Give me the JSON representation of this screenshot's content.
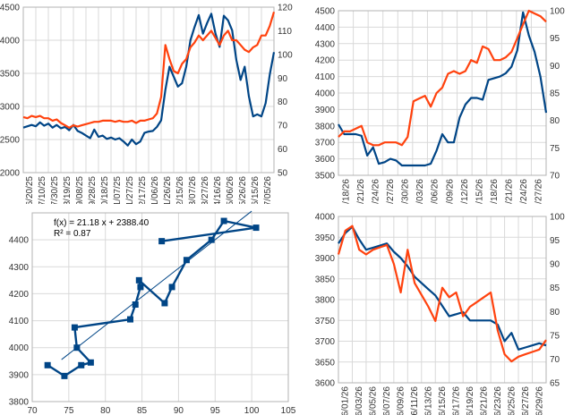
{
  "colors": {
    "navy": "#004586",
    "orange": "#ff420e",
    "grid": "#d9d9d9",
    "text": "#333333"
  },
  "chart_data": [
    {
      "type": "line",
      "x_ticks": [
        "06/20/25",
        "07/10/25",
        "07/30/25",
        "08/19/25",
        "09/08/25",
        "09/28/25",
        "10/18/25",
        "11/07/25",
        "11/27/25",
        "12/17/25",
        "01/06/26",
        "01/26/26",
        "02/15/26",
        "03/07/26",
        "03/27/26",
        "04/16/26",
        "05/06/26",
        "05/26/26",
        "06/15/26",
        "07/05/26"
      ],
      "y_left": {
        "ticks": [
          "2000",
          "2500",
          "3000",
          "3500",
          "4000",
          "4500"
        ],
        "range": [
          2000,
          4500
        ]
      },
      "y_right": {
        "ticks": [
          "50",
          "60",
          "70",
          "80",
          "90",
          "100",
          "110",
          "120"
        ],
        "range": [
          50,
          120
        ]
      },
      "grid": true,
      "series": [
        {
          "axis": "left",
          "color": "#004586",
          "values": [
            2680,
            2700,
            2720,
            2700,
            2760,
            2710,
            2740,
            2680,
            2720,
            2670,
            2690,
            2640,
            2720,
            2630,
            2600,
            2560,
            2520,
            2650,
            2540,
            2560,
            2510,
            2530,
            2500,
            2520,
            2470,
            2410,
            2500,
            2430,
            2470,
            2600,
            2620,
            2630,
            2690,
            2790,
            3250,
            3600,
            3450,
            3300,
            3350,
            3600,
            4000,
            4200,
            4380,
            4100,
            4260,
            4400,
            4100,
            3900,
            4370,
            4300,
            4150,
            3700,
            3400,
            3600,
            3150,
            2850,
            2880,
            2850,
            3050,
            3480,
            3820
          ]
        },
        {
          "axis": "right",
          "color": "#ff420e",
          "values": [
            73.5,
            73,
            74,
            73.5,
            74,
            73,
            73,
            72,
            72.5,
            71,
            70,
            69,
            70,
            69.5,
            70,
            70.5,
            71,
            71.5,
            71.5,
            72,
            72,
            72,
            71.5,
            72,
            71.5,
            71.5,
            72,
            71,
            72,
            72,
            72.5,
            73,
            75,
            82,
            104,
            98,
            93,
            92,
            96,
            98,
            103,
            105,
            108,
            106,
            108,
            110,
            107,
            104,
            108,
            110,
            106,
            106,
            104,
            102,
            101,
            103,
            104,
            108,
            108,
            112,
            118
          ]
        }
      ]
    },
    {
      "type": "line",
      "x_ticks": [
        "06/18/26",
        "06/21/26",
        "06/24/26",
        "06/27/26",
        "06/30/26",
        "07/03/26",
        "07/06/26",
        "07/09/26",
        "07/12/26",
        "07/15/26",
        "07/18/26",
        "07/21/26",
        "07/24/26",
        "07/27/26"
      ],
      "y_left": {
        "ticks": [
          "3500",
          "3600",
          "3700",
          "3800",
          "3900",
          "4000",
          "4100",
          "4200",
          "4300",
          "4400",
          "4500"
        ],
        "range": [
          3500,
          4500
        ]
      },
      "y_right": {
        "ticks": [
          "70",
          "75",
          "80",
          "85",
          "90",
          "95",
          "100"
        ],
        "range": [
          70,
          100
        ]
      },
      "grid": true,
      "series": [
        {
          "axis": "left",
          "color": "#004586",
          "values": [
            3810,
            3750,
            3750,
            3750,
            3740,
            3620,
            3670,
            3570,
            3580,
            3600,
            3590,
            3560,
            3560,
            3560,
            3560,
            3560,
            3570,
            3650,
            3750,
            3700,
            3700,
            3850,
            3930,
            3970,
            3970,
            3960,
            4080,
            4090,
            4100,
            4120,
            4160,
            4260,
            4490,
            4350,
            4250,
            4100,
            3880
          ]
        },
        {
          "axis": "right",
          "color": "#ff420e",
          "values": [
            77,
            78,
            78,
            78.5,
            79,
            76,
            75.5,
            75.5,
            76,
            76,
            76,
            75.5,
            77,
            83.5,
            84,
            84.5,
            82.5,
            85,
            86,
            88.5,
            89,
            88.5,
            89,
            91,
            90.5,
            93.5,
            93,
            91,
            91,
            91.5,
            92.5,
            95,
            97.5,
            100,
            99.5,
            99,
            98
          ]
        }
      ]
    },
    {
      "type": "scatter",
      "x_ticks": [
        "70",
        "75",
        "80",
        "85",
        "90",
        "95",
        "100",
        "105"
      ],
      "x_range": [
        70,
        105
      ],
      "y_ticks": [
        "3800",
        "3900",
        "4000",
        "4100",
        "4200",
        "4300",
        "4400"
      ],
      "y_range": [
        3800,
        4500
      ],
      "grid": true,
      "annotation": {
        "equation": "f(x) = 21.18 x + 2388.40",
        "r2": "R² = 0.87"
      },
      "trendline": {
        "slope": 21.18,
        "intercept": 2388.4,
        "color": "#004586"
      },
      "points": [
        {
          "x": 72.1,
          "y": 3935
        },
        {
          "x": 74.4,
          "y": 3895
        },
        {
          "x": 76.7,
          "y": 3935
        },
        {
          "x": 78.0,
          "y": 3945
        },
        {
          "x": 76.1,
          "y": 4000
        },
        {
          "x": 75.8,
          "y": 4075
        },
        {
          "x": 83.4,
          "y": 4105
        },
        {
          "x": 84.1,
          "y": 4160
        },
        {
          "x": 84.8,
          "y": 4225
        },
        {
          "x": 84.6,
          "y": 4250
        },
        {
          "x": 88.1,
          "y": 4165
        },
        {
          "x": 89.1,
          "y": 4225
        },
        {
          "x": 91.1,
          "y": 4325
        },
        {
          "x": 94.5,
          "y": 4400
        },
        {
          "x": 96.2,
          "y": 4470
        },
        {
          "x": 100.6,
          "y": 4445
        },
        {
          "x": 87.7,
          "y": 4395
        }
      ]
    },
    {
      "type": "line",
      "x_ticks": [
        "06/01/26",
        "06/03/26",
        "06/05/26",
        "06/07/26",
        "06/09/26",
        "06/11/26",
        "06/13/26",
        "06/15/26",
        "06/17/26",
        "06/19/26",
        "06/21/26",
        "06/23/26",
        "06/25/26",
        "06/27/26",
        "06/29/26"
      ],
      "y_left": {
        "ticks": [
          "3600",
          "3650",
          "3700",
          "3750",
          "3800",
          "3850",
          "3900",
          "3950",
          "4000"
        ],
        "range": [
          3600,
          4000
        ]
      },
      "y_right": {
        "ticks": [
          "65",
          "70",
          "75",
          "80",
          "85",
          "90",
          "95",
          "100"
        ],
        "range": [
          65,
          100
        ]
      },
      "grid": true,
      "series": [
        {
          "axis": "left",
          "color": "#004586",
          "values": [
            3935,
            3960,
            3975,
            3945,
            3920,
            3925,
            3930,
            3935,
            3915,
            3900,
            3880,
            3855,
            3840,
            3825,
            3810,
            3785,
            3760,
            3765,
            3770,
            3750,
            3750,
            3750,
            3750,
            3740,
            3700,
            3720,
            3680,
            3685,
            3690,
            3695,
            3690
          ]
        },
        {
          "axis": "right",
          "color": "#ff420e",
          "values": [
            92,
            97,
            98,
            93,
            92,
            93,
            93.5,
            94,
            90,
            84,
            93,
            86,
            83.5,
            81,
            78,
            85,
            83,
            84,
            79,
            81,
            82,
            83,
            84,
            76,
            71,
            69.5,
            70.5,
            71,
            71.5,
            72,
            74
          ]
        }
      ]
    }
  ]
}
